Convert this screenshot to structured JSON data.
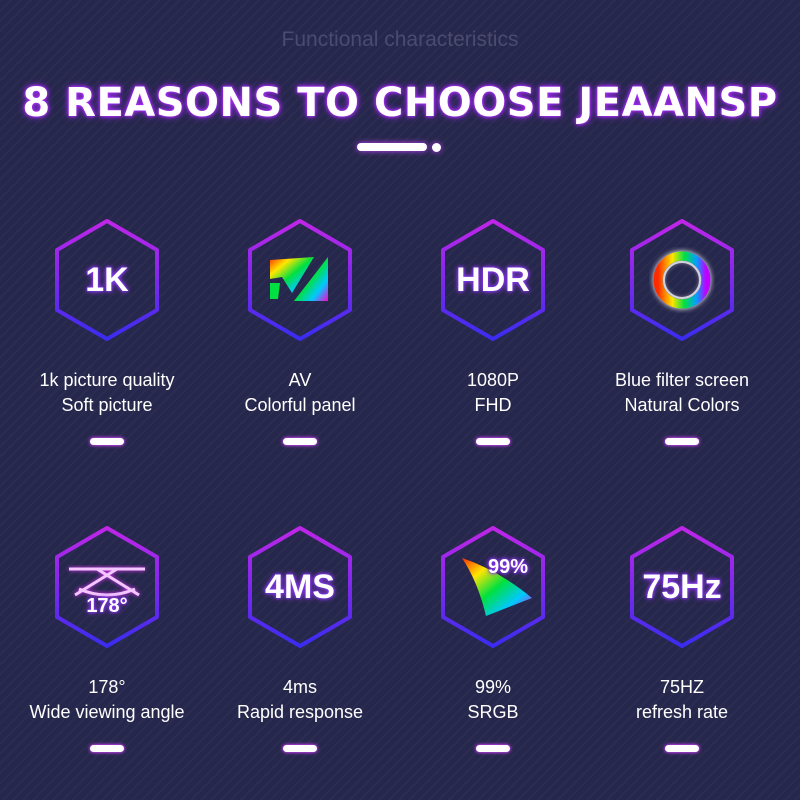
{
  "header": {
    "subtitle": "Functional characteristics",
    "title": "8 REASONS TO CHOOSE JEAANSP"
  },
  "colors": {
    "background": "#26274c",
    "hex_top": "#c026e8",
    "hex_bottom": "#3a2cf0",
    "glow": "#b02cff"
  },
  "features": [
    {
      "icon": "1k-text-icon",
      "icon_text": "1K",
      "line1": "1k picture quality",
      "line2": "Soft picture"
    },
    {
      "icon": "rainbow-check-panel-icon",
      "icon_text": "",
      "line1": "AV",
      "line2": "Colorful panel"
    },
    {
      "icon": "hdr-text-icon",
      "icon_text": "HDR",
      "line1": "1080P",
      "line2": "FHD"
    },
    {
      "icon": "rainbow-ring-icon",
      "icon_text": "",
      "line1": "Blue filter screen",
      "line2": "Natural Colors"
    },
    {
      "icon": "viewing-angle-icon",
      "icon_text": "178°",
      "line1": "178°",
      "line2": "Wide viewing angle"
    },
    {
      "icon": "4ms-text-icon",
      "icon_text": "4MS",
      "line1": "4ms",
      "line2": "Rapid response"
    },
    {
      "icon": "color-gamut-icon",
      "icon_text": "99%",
      "line1": "99%",
      "line2": "SRGB"
    },
    {
      "icon": "75hz-text-icon",
      "icon_text": "75Hz",
      "line1": "75HZ",
      "line2": "refresh rate"
    }
  ]
}
